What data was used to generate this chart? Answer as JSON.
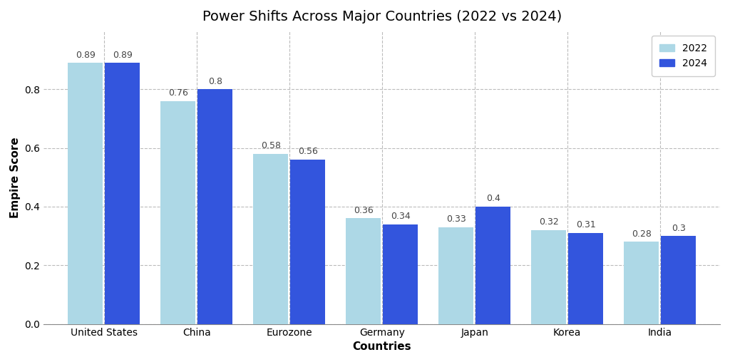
{
  "title": "Power Shifts Across Major Countries (2022 vs 2024)",
  "xlabel": "Countries",
  "ylabel": "Empire Score",
  "categories": [
    "United States",
    "China",
    "Eurozone",
    "Germany",
    "Japan",
    "Korea",
    "India"
  ],
  "values_2022": [
    0.89,
    0.76,
    0.58,
    0.36,
    0.33,
    0.32,
    0.28
  ],
  "values_2024": [
    0.89,
    0.8,
    0.56,
    0.34,
    0.4,
    0.31,
    0.3
  ],
  "color_2022": "#ADD8E6",
  "color_2024": "#3355DD",
  "ylim": [
    0,
    1.0
  ],
  "yticks": [
    0.0,
    0.2,
    0.4,
    0.6,
    0.8
  ],
  "bar_width": 0.38,
  "bar_gap": 0.02,
  "legend_labels": [
    "2022",
    "2024"
  ],
  "background_color": "#ffffff",
  "grid_color": "#bbbbbb",
  "title_fontsize": 14,
  "label_fontsize": 11,
  "tick_fontsize": 10,
  "annot_fontsize": 9
}
